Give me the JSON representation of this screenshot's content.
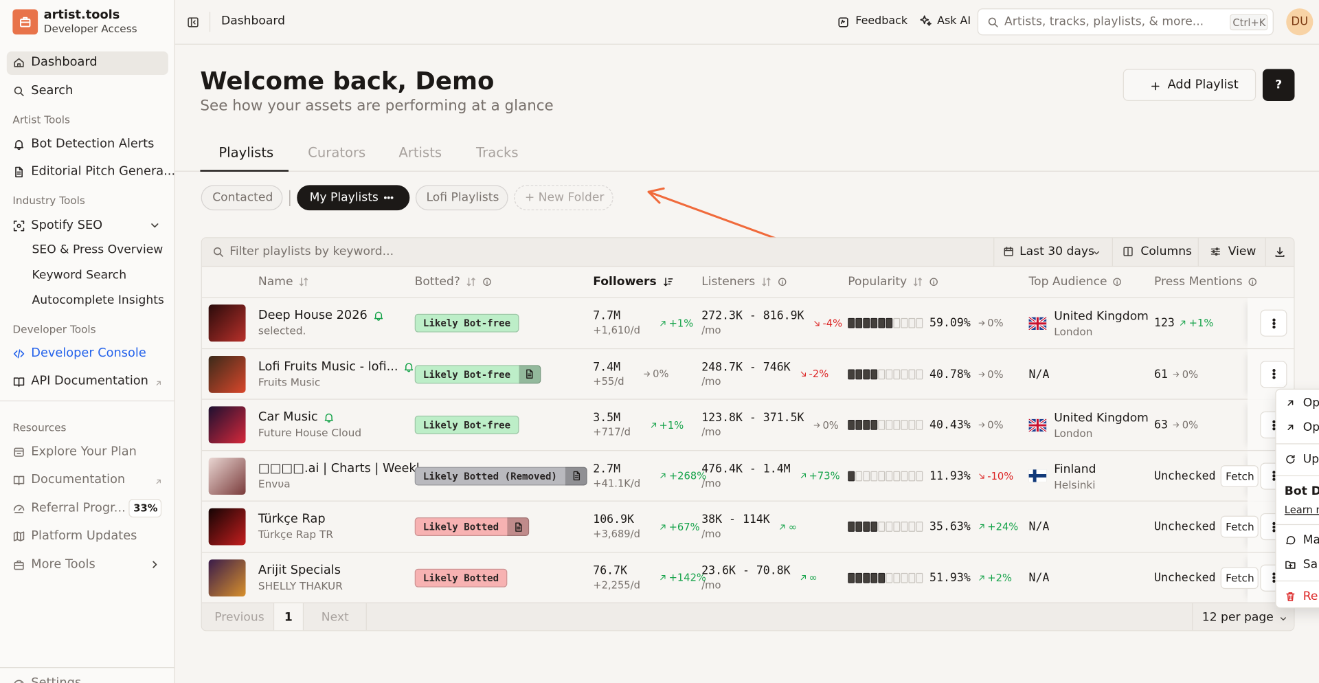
{
  "sidebar": {
    "brand": "artist.tools",
    "plan": "Developer Access",
    "top": [
      "Dashboard",
      "Search"
    ],
    "groups": [
      {
        "heading": "Artist Tools",
        "links": [
          "Bot Detection Alerts",
          "Editorial Pitch Genera..."
        ]
      },
      {
        "heading": "Industry Tools",
        "links": [
          "Spotify SEO"
        ],
        "sublinks": [
          "SEO & Press Overview",
          "Keyword Search",
          "Autocomplete Insights"
        ]
      },
      {
        "heading": "Developer Tools",
        "links": [
          "Developer Console",
          "API Documentation"
        ]
      },
      {
        "heading": "Resources",
        "links": [
          "Explore Your Plan",
          "Documentation",
          "Referral Progr...",
          "Platform Updates",
          "More Tools"
        ]
      }
    ],
    "referral_badge": "33%",
    "footer": "Settings"
  },
  "topbar": {
    "breadcrumb": "Dashboard",
    "feedback": "Feedback",
    "ask_ai": "Ask AI",
    "search_placeholder": "Artists, tracks, playlists, & more...",
    "shortcut": "Ctrl+K",
    "avatar": "DU"
  },
  "header": {
    "title": "Welcome back, Demo",
    "subtitle": "See how your assets are performing at a glance",
    "add_button": "Add Playlist",
    "help_button": "?"
  },
  "tabs": [
    "Playlists",
    "Curators",
    "Artists",
    "Tracks"
  ],
  "folders": [
    "Contacted",
    "My Playlists",
    "Lofi Playlists",
    "+ New Folder"
  ],
  "toolbar": {
    "filter_placeholder": "Filter playlists by keyword...",
    "date_range": "Last 30 days",
    "columns": "Columns",
    "view": "View"
  },
  "table": {
    "columns": [
      "Name",
      "Botted?",
      "Followers",
      "Listeners",
      "Popularity",
      "Top Audience",
      "Press Mentions"
    ],
    "rows": [
      {
        "name": "Deep House 2026",
        "owner": "selected.",
        "alert": true,
        "thumb": [
          "#2a0b0b",
          "#b8302a"
        ],
        "bot_status": "Likely Bot-free",
        "bot_color": "#bdeec8",
        "report": false,
        "followers": "7.7M",
        "followers_daily": "+1,610/d",
        "followers_change": "+1%",
        "listeners": "272.3K - 816.9K",
        "listeners_unit": "/mo",
        "listeners_change": "-4%",
        "popularity": "59.09%",
        "popularity_change": "0%",
        "country": "United Kingdom",
        "city": "London",
        "flag": "gb",
        "press": "123",
        "press_change": "+1%"
      },
      {
        "name": "Lofi Fruits Music - lofi...",
        "owner": "Fruits Music",
        "alert": true,
        "thumb": [
          "#3b2a1a",
          "#d9472b"
        ],
        "bot_status": "Likely Bot-free",
        "bot_color": "#bdeec8",
        "report": true,
        "followers": "7.4M",
        "followers_daily": "+55/d",
        "followers_change": "0%",
        "listeners": "248.7K - 746K",
        "listeners_unit": "/mo",
        "listeners_change": "-2%",
        "popularity": "40.78%",
        "popularity_change": "0%",
        "country": "N/A",
        "press": "61",
        "press_change": "0%"
      },
      {
        "name": "Car Music",
        "owner": "Future House Cloud",
        "alert": true,
        "thumb": [
          "#1d1030",
          "#d6283b"
        ],
        "bot_status": "Likely Bot-free",
        "bot_color": "#bdeec8",
        "report": false,
        "followers": "3.5M",
        "followers_daily": "+717/d",
        "followers_change": "+1%",
        "listeners": "123.8K - 371.5K",
        "listeners_unit": "/mo",
        "listeners_change": "0%",
        "popularity": "40.43%",
        "popularity_change": "0%",
        "country": "United Kingdom",
        "city": "London",
        "flag": "gb",
        "press": "63",
        "press_change": "0%"
      },
      {
        "name": "□□□□.ai | Charts | Weekl...",
        "owner": "Envυa",
        "alert": false,
        "thumb": [
          "#e9d6d2",
          "#7a3b3b"
        ],
        "bot_status": "Likely Botted (Removed)",
        "bot_color": "#b9b9be",
        "report": true,
        "followers": "2.7M",
        "followers_daily": "+41.1K/d",
        "followers_change": "+268%",
        "listeners": "476.4K - 1.4M",
        "listeners_unit": "/mo",
        "listeners_change": "+73%",
        "popularity": "11.93%",
        "popularity_change": "-10%",
        "country": "Finland",
        "city": "Helsinki",
        "flag": "fi",
        "press": "Unchecked",
        "press_action": "Fetch"
      },
      {
        "name": "Türkçe Rap",
        "owner": "Türkçe Rap TR",
        "alert": false,
        "thumb": [
          "#140404",
          "#c41e1e"
        ],
        "bot_status": "Likely Botted",
        "bot_color": "#f7b2b2",
        "report": true,
        "followers": "106.9K",
        "followers_daily": "+3,689/d",
        "followers_change": "+67%",
        "listeners": "38K - 114K",
        "listeners_unit": "/mo",
        "listeners_change": "∞",
        "popularity": "35.63%",
        "popularity_change": "+24%",
        "country": "N/A",
        "press": "Unchecked",
        "press_action": "Fetch"
      },
      {
        "name": "Arijit Specials",
        "owner": "SHELLY THAKUR",
        "alert": false,
        "thumb": [
          "#3a1c4a",
          "#d8902c"
        ],
        "bot_status": "Likely Botted",
        "bot_color": "#f7b2b2",
        "report": false,
        "followers": "76.7K",
        "followers_daily": "+2,255/d",
        "followers_change": "+142%",
        "listeners": "23.6K - 70.8K",
        "listeners_unit": "/mo",
        "listeners_change": "∞",
        "popularity": "51.93%",
        "popularity_change": "+2%",
        "country": "N/A",
        "press": "Unchecked",
        "press_action": "Fetch"
      }
    ]
  },
  "pagination": {
    "previous": "Previous",
    "page": "1",
    "next": "Next",
    "per_page": "12 per page"
  },
  "menu": {
    "open": "Op",
    "open_new": "Op",
    "update": "Up",
    "heading": "Bot D",
    "learn": "Learn m",
    "mark": "Ma",
    "save": "Sa",
    "remove": "Re"
  }
}
